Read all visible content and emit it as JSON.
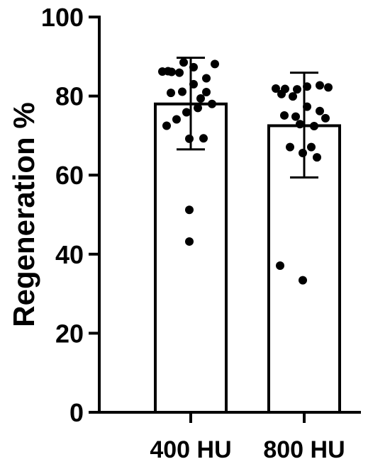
{
  "chart_data": {
    "type": "bar",
    "title": "",
    "xlabel": "",
    "ylabel": "Regeneration %",
    "ylim": [
      0,
      100
    ],
    "yticks": [
      0,
      20,
      40,
      60,
      80,
      100
    ],
    "categories": [
      "400 HU",
      "800 HU"
    ],
    "values": [
      78,
      72.5
    ],
    "error": [
      {
        "low": 66.5,
        "high": 89.7
      },
      {
        "low": 59.4,
        "high": 85.9
      }
    ],
    "points": [
      [
        86.2,
        86.1,
        88.5,
        87.3,
        84.5,
        88.1,
        86.3,
        85.9,
        83.0,
        81.0,
        80.8,
        81.1,
        79.4,
        78.0,
        75.9,
        77.0,
        74.1,
        69.2,
        69.3,
        72.5,
        51.2,
        43.2
      ],
      [
        81.9,
        81.8,
        81.7,
        82.4,
        82.7,
        82.2,
        80.5,
        79.9,
        77.3,
        76.2,
        75.1,
        74.8,
        72.4,
        74.4,
        72.9,
        67.1,
        67.1,
        65.6,
        64.5,
        37.1,
        33.4
      ]
    ],
    "grid": false,
    "legend": "none",
    "colors": {
      "bar_fill": "#ffffff",
      "stroke": "#000000",
      "points": "#000000"
    }
  }
}
